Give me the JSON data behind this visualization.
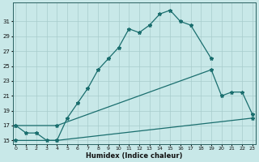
{
  "xlabel": "Humidex (Indice chaleur)",
  "bg_color": "#c8e8e8",
  "line_color": "#1a6e6e",
  "grid_color": "#a8cccc",
  "xlim": [
    -0.3,
    23.3
  ],
  "ylim": [
    14.5,
    33.5
  ],
  "yticks": [
    15,
    17,
    19,
    21,
    23,
    25,
    27,
    29,
    31
  ],
  "xticks": [
    0,
    1,
    2,
    3,
    4,
    5,
    6,
    7,
    8,
    9,
    10,
    11,
    12,
    13,
    14,
    15,
    16,
    17,
    18,
    19,
    20,
    21,
    22,
    23
  ],
  "curve1_x": [
    0,
    1,
    2,
    3,
    4,
    5,
    6,
    7,
    8,
    9,
    10,
    11,
    12,
    13,
    14,
    15,
    16,
    17,
    19
  ],
  "curve1_y": [
    17,
    16,
    16,
    15,
    15,
    18,
    20,
    22,
    24.5,
    26,
    27.5,
    30,
    29.5,
    30.5,
    32,
    32.5,
    31,
    30.5,
    26
  ],
  "curve2_x": [
    0,
    4,
    19,
    20,
    21,
    22,
    23
  ],
  "curve2_y": [
    17,
    17,
    24.5,
    21.0,
    21.5,
    21.5,
    18.5
  ],
  "curve3_x": [
    0,
    4,
    23
  ],
  "curve3_y": [
    15,
    15,
    18.0
  ]
}
